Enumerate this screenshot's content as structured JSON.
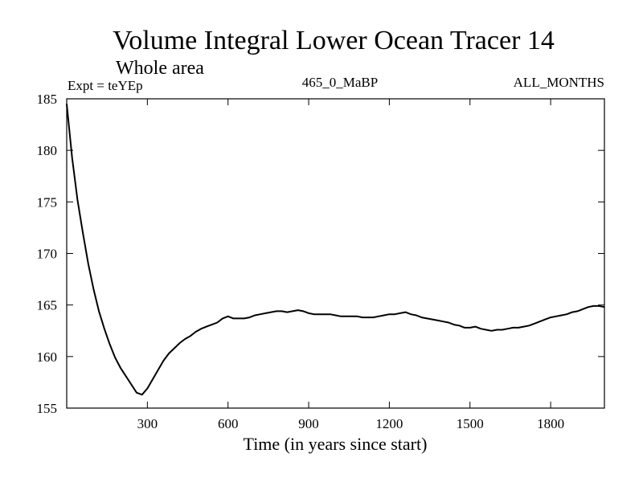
{
  "chart_data": {
    "type": "line",
    "title": "Volume Integral Lower Ocean Tracer 14",
    "subtitle": "Whole area",
    "annotations": {
      "left": "Expt = teYEp",
      "center": "465_0_MaBP",
      "right": "ALL_MONTHS"
    },
    "xlabel": "Time (in years since start)",
    "ylabel": "",
    "xlim": [
      0,
      2000
    ],
    "ylim": [
      155,
      185
    ],
    "xticks": [
      300,
      600,
      900,
      1200,
      1500,
      1800
    ],
    "yticks": [
      155,
      160,
      165,
      170,
      175,
      180,
      185
    ],
    "grid": false,
    "series": [
      {
        "name": "Tracer 14",
        "color": "#000000",
        "x": [
          0,
          20,
          40,
          60,
          80,
          100,
          120,
          140,
          160,
          180,
          200,
          220,
          240,
          260,
          280,
          300,
          320,
          340,
          360,
          380,
          400,
          420,
          440,
          460,
          480,
          500,
          520,
          540,
          560,
          580,
          600,
          620,
          640,
          660,
          680,
          700,
          720,
          740,
          760,
          780,
          800,
          820,
          840,
          860,
          880,
          900,
          920,
          940,
          960,
          980,
          1000,
          1020,
          1040,
          1060,
          1080,
          1100,
          1120,
          1140,
          1160,
          1180,
          1200,
          1220,
          1240,
          1260,
          1280,
          1300,
          1320,
          1340,
          1360,
          1380,
          1400,
          1420,
          1440,
          1460,
          1480,
          1500,
          1520,
          1540,
          1560,
          1580,
          1600,
          1620,
          1640,
          1660,
          1680,
          1700,
          1720,
          1740,
          1760,
          1780,
          1800,
          1820,
          1840,
          1860,
          1880,
          1900,
          1920,
          1940,
          1960,
          1980,
          2000
        ],
        "values": [
          184.5,
          179.3,
          175.2,
          172.0,
          169.0,
          166.5,
          164.4,
          162.7,
          161.2,
          159.9,
          158.9,
          158.1,
          157.3,
          156.5,
          156.3,
          156.9,
          157.8,
          158.7,
          159.6,
          160.3,
          160.8,
          161.3,
          161.7,
          162.0,
          162.4,
          162.7,
          162.9,
          163.1,
          163.3,
          163.7,
          163.9,
          163.7,
          163.7,
          163.7,
          163.8,
          164.0,
          164.1,
          164.2,
          164.3,
          164.4,
          164.4,
          164.3,
          164.4,
          164.5,
          164.4,
          164.2,
          164.1,
          164.1,
          164.1,
          164.1,
          164.0,
          163.9,
          163.9,
          163.9,
          163.9,
          163.8,
          163.8,
          163.8,
          163.9,
          164.0,
          164.1,
          164.1,
          164.2,
          164.3,
          164.1,
          164.0,
          163.8,
          163.7,
          163.6,
          163.5,
          163.4,
          163.3,
          163.1,
          163.0,
          162.8,
          162.8,
          162.9,
          162.7,
          162.6,
          162.5,
          162.6,
          162.6,
          162.7,
          162.8,
          162.8,
          162.9,
          163.0,
          163.2,
          163.4,
          163.6,
          163.8,
          163.9,
          164.0,
          164.1,
          164.3,
          164.4,
          164.6,
          164.8,
          164.9,
          164.9,
          164.8
        ]
      }
    ]
  }
}
